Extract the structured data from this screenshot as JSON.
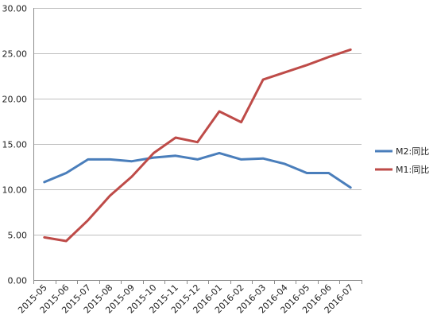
{
  "chart_data": {
    "type": "line",
    "categories": [
      "2015-05",
      "2015-06",
      "2015-07",
      "2015-08",
      "2015-09",
      "2015-10",
      "2015-11",
      "2015-12",
      "2016-01",
      "2016-02",
      "2016-03",
      "2016-04",
      "2016-05",
      "2016-06",
      "2016-07"
    ],
    "series": [
      {
        "name": "M2:同比",
        "color": "#4a7ebb",
        "values": [
          10.8,
          11.8,
          13.3,
          13.3,
          13.1,
          13.5,
          13.7,
          13.3,
          14.0,
          13.3,
          13.4,
          12.8,
          11.8,
          11.8,
          10.2
        ]
      },
      {
        "name": "M1:同比",
        "color": "#be4b48",
        "values": [
          4.7,
          4.3,
          6.6,
          9.3,
          11.4,
          14.0,
          15.7,
          15.2,
          18.6,
          17.4,
          22.1,
          22.9,
          23.7,
          24.6,
          25.4
        ]
      }
    ],
    "ylim": [
      0,
      30
    ],
    "yticks": [
      "0.00",
      "5.00",
      "10.00",
      "15.00",
      "20.00",
      "25.00",
      "30.00"
    ],
    "grid": true,
    "legend_position": "right",
    "title": "",
    "xlabel": "",
    "ylabel": ""
  }
}
